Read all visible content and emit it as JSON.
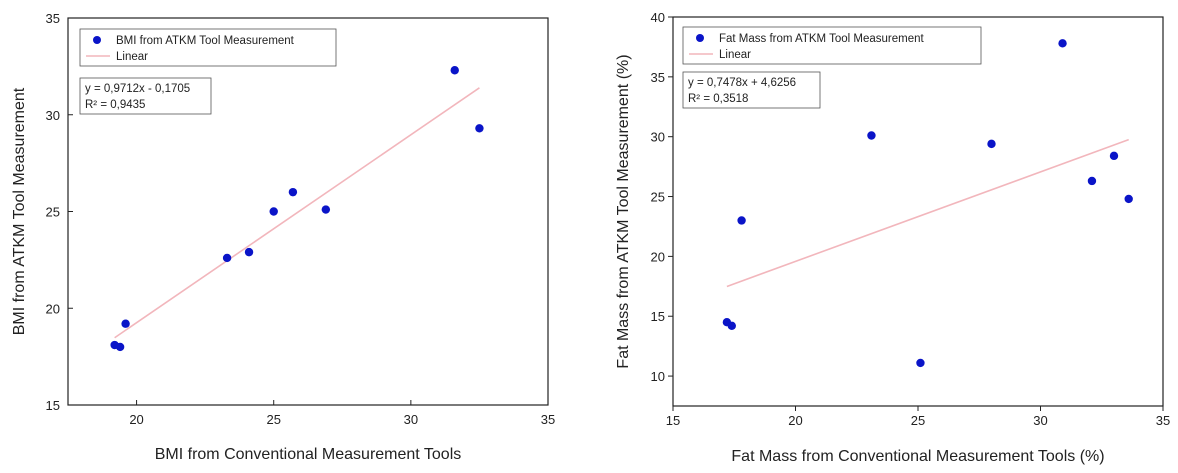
{
  "chart_data": [
    {
      "type": "scatter",
      "xlabel": "BMI from Conventional Measurement Tools",
      "ylabel": "BMI from ATKM Tool Measurement",
      "xlim": [
        17.5,
        35
      ],
      "ylim": [
        15,
        35
      ],
      "xticks": [
        "20",
        "25",
        "30",
        "35"
      ],
      "yticks": [
        "15",
        "20",
        "25",
        "30",
        "35"
      ],
      "legend_position": "top-left",
      "series": [
        {
          "name": "BMI from ATKM Tool Measurement",
          "kind": "points",
          "color": "#0a14c8",
          "points": [
            {
              "x": 19.2,
              "y": 18.1
            },
            {
              "x": 19.4,
              "y": 18.0
            },
            {
              "x": 19.6,
              "y": 19.2
            },
            {
              "x": 23.3,
              "y": 22.6
            },
            {
              "x": 24.1,
              "y": 22.9
            },
            {
              "x": 25.0,
              "y": 25.0
            },
            {
              "x": 25.7,
              "y": 26.0
            },
            {
              "x": 26.9,
              "y": 25.1
            },
            {
              "x": 31.6,
              "y": 32.3
            },
            {
              "x": 32.5,
              "y": 29.3
            }
          ]
        },
        {
          "name": "Linear",
          "kind": "line",
          "color": "#f2b6bc",
          "slope": 0.9712,
          "intercept": -0.1705,
          "x_range": [
            19.2,
            32.5
          ]
        }
      ],
      "annotation": {
        "lines": [
          "y = 0,9712x - 0,1705",
          "R² = 0,9435"
        ]
      }
    },
    {
      "type": "scatter",
      "xlabel": "Fat Mass from Conventional Measurement Tools (%)",
      "ylabel": "Fat Mass from ATKM Tool Measurement (%)",
      "xlim": [
        15,
        35
      ],
      "ylim": [
        7.5,
        40
      ],
      "xticks": [
        "15",
        "20",
        "25",
        "30",
        "35"
      ],
      "yticks": [
        "10",
        "15",
        "20",
        "25",
        "30",
        "35",
        "40"
      ],
      "legend_position": "top-left",
      "series": [
        {
          "name": "Fat Mass from ATKM Tool Measurement",
          "kind": "points",
          "color": "#0a14c8",
          "points": [
            {
              "x": 17.2,
              "y": 14.5
            },
            {
              "x": 17.4,
              "y": 14.2
            },
            {
              "x": 17.8,
              "y": 23.0
            },
            {
              "x": 23.1,
              "y": 30.1
            },
            {
              "x": 25.1,
              "y": 11.1
            },
            {
              "x": 28.0,
              "y": 29.4
            },
            {
              "x": 30.9,
              "y": 37.8
            },
            {
              "x": 32.1,
              "y": 26.3
            },
            {
              "x": 33.0,
              "y": 28.4
            },
            {
              "x": 33.6,
              "y": 24.8
            }
          ]
        },
        {
          "name": "Linear",
          "kind": "line",
          "color": "#f2b6bc",
          "slope": 0.7478,
          "intercept": 4.6256,
          "x_range": [
            17.2,
            33.6
          ]
        }
      ],
      "annotation": {
        "lines": [
          "y = 0,7478x + 4,6256",
          "R² = 0,3518"
        ]
      }
    }
  ]
}
